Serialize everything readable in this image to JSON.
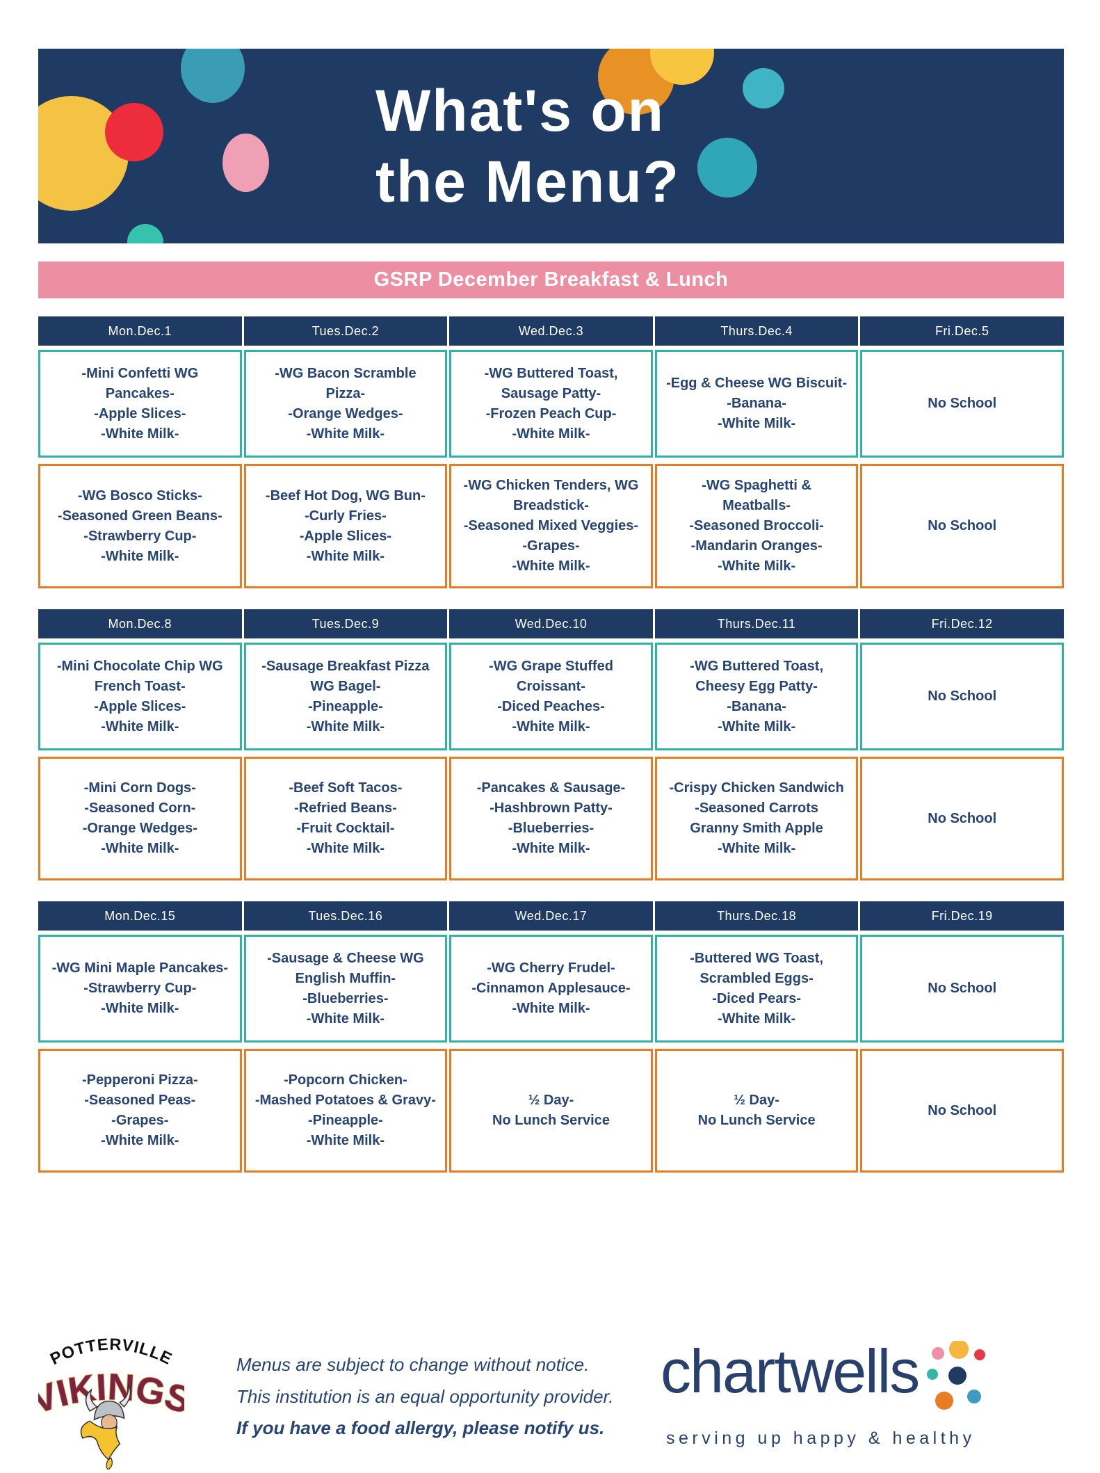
{
  "colors": {
    "navy": "#1F3A63",
    "pink": "#EC8FA3",
    "teal_border": "#2FB3A3",
    "orange_border": "#E87C22",
    "text_navy": "#274472",
    "chartwells_navy": "#28406B"
  },
  "banner": {
    "title": "What's on\nthe Menu?"
  },
  "subtitle_bar": {
    "text": "GSRP December Breakfast & Lunch"
  },
  "weeks": [
    {
      "days": [
        "Mon.Dec.1",
        "Tues.Dec.2",
        "Wed.Dec.3",
        "Thurs.Dec.4",
        "Fri.Dec.5"
      ],
      "breakfast": [
        [
          "-Mini Confetti WG",
          "Pancakes-",
          "-Apple Slices-",
          "-White Milk-"
        ],
        [
          "-WG Bacon Scramble",
          "Pizza-",
          "-Orange Wedges-",
          "-White Milk-"
        ],
        [
          "-WG Buttered Toast,",
          "Sausage Patty-",
          "-Frozen Peach Cup-",
          "-White Milk-"
        ],
        [
          "-Egg & Cheese WG Biscuit-",
          "-Banana-",
          "-White Milk-"
        ],
        [
          "No School"
        ]
      ],
      "lunch": [
        [
          "-WG Bosco Sticks-",
          "-Seasoned Green Beans-",
          "-Strawberry Cup-",
          "-White Milk-"
        ],
        [
          "-Beef Hot Dog, WG Bun-",
          "-Curly Fries-",
          "-Apple Slices-",
          "-White Milk-"
        ],
        [
          "-WG Chicken Tenders, WG",
          "Breadstick-",
          "-Seasoned Mixed Veggies-",
          "-Grapes-",
          "-White Milk-"
        ],
        [
          "-WG Spaghetti &",
          "Meatballs-",
          "-Seasoned Broccoli-",
          "-Mandarin Oranges-",
          "-White Milk-"
        ],
        [
          "No School"
        ]
      ]
    },
    {
      "days": [
        "Mon.Dec.8",
        "Tues.Dec.9",
        "Wed.Dec.10",
        "Thurs.Dec.11",
        "Fri.Dec.12"
      ],
      "breakfast": [
        [
          "-Mini Chocolate Chip WG",
          "French Toast-",
          "-Apple Slices-",
          "-White Milk-"
        ],
        [
          "-Sausage Breakfast Pizza",
          "WG Bagel-",
          "-Pineapple-",
          "-White Milk-"
        ],
        [
          "-WG Grape Stuffed",
          "Croissant-",
          "-Diced Peaches-",
          "-White Milk-"
        ],
        [
          "-WG Buttered Toast,",
          "Cheesy Egg Patty-",
          "-Banana-",
          "-White Milk-"
        ],
        [
          "No School"
        ]
      ],
      "lunch": [
        [
          "-Mini Corn Dogs-",
          "-Seasoned Corn-",
          "-Orange Wedges-",
          "-White Milk-"
        ],
        [
          "-Beef Soft Tacos-",
          "-Refried Beans-",
          "-Fruit Cocktail-",
          "-White Milk-"
        ],
        [
          "-Pancakes & Sausage-",
          "-Hashbrown Patty-",
          "-Blueberries-",
          "-White Milk-"
        ],
        [
          "-Crispy Chicken Sandwich",
          "-Seasoned Carrots",
          "Granny Smith Apple",
          "-White Milk-"
        ],
        [
          "No School"
        ]
      ]
    },
    {
      "days": [
        "Mon.Dec.15",
        "Tues.Dec.16",
        "Wed.Dec.17",
        "Thurs.Dec.18",
        "Fri.Dec.19"
      ],
      "breakfast": [
        [
          "-WG Mini Maple Pancakes-",
          "-Strawberry Cup-",
          "-White Milk-"
        ],
        [
          "-Sausage & Cheese WG",
          "English Muffin-",
          "-Blueberries-",
          "-White Milk-"
        ],
        [
          "-WG Cherry Frudel-",
          "-Cinnamon Applesauce-",
          "-White Milk-"
        ],
        [
          "-Buttered WG Toast,",
          "Scrambled Eggs-",
          "-Diced Pears-",
          "-White Milk-"
        ],
        [
          "No School"
        ]
      ],
      "lunch": [
        [
          "-Pepperoni Pizza-",
          "-Seasoned Peas-",
          "-Grapes-",
          "-White Milk-"
        ],
        [
          "-Popcorn Chicken-",
          "-Mashed Potatoes & Gravy-",
          "-Pineapple-",
          "-White Milk-"
        ],
        [
          "½ Day-",
          "No Lunch Service"
        ],
        [
          "½ Day-",
          "No Lunch Service"
        ],
        [
          "No School"
        ]
      ]
    }
  ],
  "footer": {
    "school_logo": {
      "line1": "POTTERVILLE",
      "line2": "VIKINGS"
    },
    "disclaimer": [
      "Menus are subject to change without notice.",
      "This institution is an equal opportunity provider.",
      "If you have a food allergy, please notify us."
    ],
    "chartwells": {
      "wordmark": "chartwells",
      "tagline": "serving up happy & healthy"
    }
  }
}
